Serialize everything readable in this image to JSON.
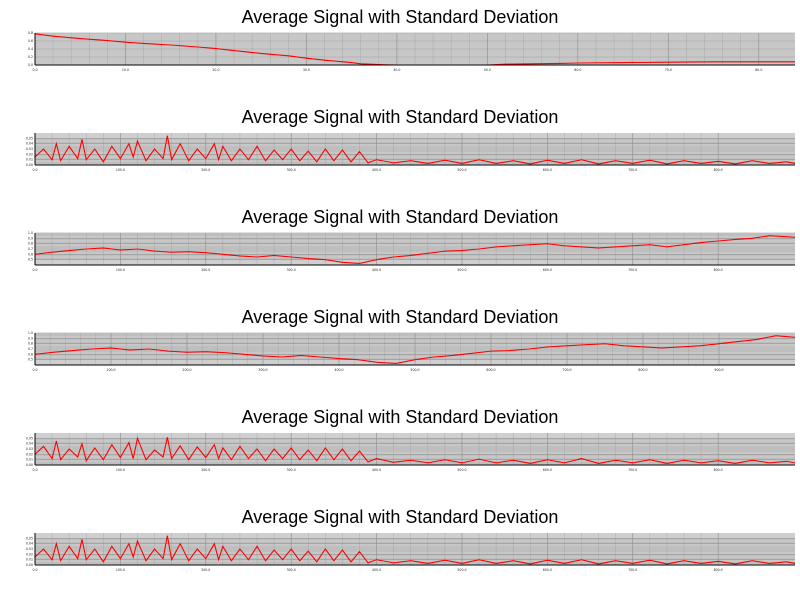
{
  "colors": {
    "plot_bg": "#cfcfcf",
    "grid": "#8c8c8c",
    "line": "#ff0000",
    "axis": "#000000"
  },
  "chart_data": [
    {
      "type": "line",
      "title": "Average Signal with Standard Deviation",
      "grid": true,
      "xlim": [
        0,
        84
      ],
      "ylim": [
        0.0,
        0.8
      ],
      "x_ticks": [
        0,
        10,
        20,
        30,
        40,
        50,
        60,
        70,
        80
      ],
      "x_tick_labels": [
        "0.0",
        "10.0",
        "20.0",
        "30.0",
        "40.0",
        "50.0",
        "60.0",
        "70.0",
        "80.0"
      ],
      "y_ticks": [
        0.0,
        0.2,
        0.4,
        0.6,
        0.8
      ],
      "y_tick_labels": [
        "0.0",
        "0.2",
        "0.4",
        "0.6",
        "0.8"
      ],
      "series": [
        {
          "x": [
            0,
            2,
            5,
            8,
            10,
            12,
            15,
            18,
            20,
            22,
            25,
            28,
            30,
            32,
            35,
            36,
            38,
            40,
            45,
            50,
            52,
            55,
            58,
            60,
            65,
            70,
            75,
            80,
            84
          ],
          "values": [
            0.78,
            0.72,
            0.66,
            0.61,
            0.57,
            0.54,
            0.5,
            0.45,
            0.41,
            0.36,
            0.29,
            0.23,
            0.17,
            0.12,
            0.06,
            0.03,
            0.01,
            0.0,
            0.0,
            0.0,
            0.02,
            0.03,
            0.04,
            0.05,
            0.06,
            0.07,
            0.08,
            0.08,
            0.08
          ]
        }
      ]
    },
    {
      "type": "line",
      "title": "Average Signal with Standard Deviation",
      "grid": true,
      "xlim": [
        0,
        890
      ],
      "ylim": [
        0.0,
        0.06
      ],
      "x_ticks": [
        0,
        100,
        200,
        300,
        400,
        500,
        600,
        700,
        800
      ],
      "x_tick_labels": [
        "0.0",
        "100.0",
        "200.0",
        "300.0",
        "400.0",
        "500.0",
        "600.0",
        "700.0",
        "800.0"
      ],
      "y_ticks": [
        0.0,
        0.01,
        0.02,
        0.03,
        0.04,
        0.05
      ],
      "y_tick_labels": [
        "0.00",
        "0.01",
        "0.02",
        "0.03",
        "0.04",
        "0.05"
      ],
      "series": [
        {
          "x": [
            0,
            10,
            20,
            25,
            30,
            40,
            50,
            55,
            60,
            70,
            80,
            90,
            100,
            110,
            115,
            120,
            130,
            140,
            150,
            155,
            160,
            170,
            180,
            190,
            200,
            210,
            215,
            220,
            230,
            240,
            250,
            260,
            270,
            280,
            290,
            300,
            310,
            320,
            330,
            340,
            350,
            360,
            370,
            380,
            390,
            400,
            420,
            440,
            460,
            480,
            500,
            520,
            540,
            560,
            580,
            600,
            620,
            640,
            660,
            680,
            700,
            720,
            740,
            760,
            780,
            800,
            820,
            840,
            860,
            880,
            890
          ],
          "values": [
            0.015,
            0.03,
            0.01,
            0.04,
            0.008,
            0.035,
            0.012,
            0.048,
            0.01,
            0.03,
            0.006,
            0.035,
            0.012,
            0.04,
            0.015,
            0.045,
            0.008,
            0.03,
            0.012,
            0.055,
            0.01,
            0.04,
            0.008,
            0.03,
            0.012,
            0.04,
            0.01,
            0.035,
            0.008,
            0.03,
            0.01,
            0.035,
            0.008,
            0.028,
            0.01,
            0.03,
            0.008,
            0.026,
            0.006,
            0.03,
            0.008,
            0.028,
            0.006,
            0.025,
            0.004,
            0.01,
            0.004,
            0.008,
            0.003,
            0.009,
            0.003,
            0.01,
            0.003,
            0.008,
            0.002,
            0.009,
            0.003,
            0.01,
            0.002,
            0.008,
            0.003,
            0.009,
            0.002,
            0.008,
            0.003,
            0.007,
            0.002,
            0.008,
            0.003,
            0.006,
            0.003
          ]
        }
      ]
    },
    {
      "type": "line",
      "title": "Average Signal with Standard Deviation",
      "grid": true,
      "xlim": [
        0,
        890
      ],
      "ylim": [
        0.4,
        1.0
      ],
      "x_ticks": [
        0,
        100,
        200,
        300,
        400,
        500,
        600,
        700,
        800
      ],
      "x_tick_labels": [
        "0.0",
        "100.0",
        "200.0",
        "300.0",
        "400.0",
        "500.0",
        "600.0",
        "700.0",
        "800.0"
      ],
      "y_ticks": [
        0.5,
        0.6,
        0.7,
        0.8,
        0.9,
        1.0
      ],
      "y_tick_labels": [
        "0.5",
        "0.6",
        "0.7",
        "0.8",
        "0.9",
        "1.0"
      ],
      "series": [
        {
          "x": [
            0,
            20,
            40,
            60,
            80,
            100,
            120,
            140,
            160,
            180,
            200,
            220,
            240,
            260,
            280,
            300,
            320,
            340,
            360,
            380,
            400,
            420,
            440,
            460,
            480,
            500,
            520,
            540,
            560,
            580,
            600,
            620,
            640,
            660,
            680,
            700,
            720,
            740,
            760,
            780,
            800,
            820,
            840,
            860,
            880,
            890
          ],
          "values": [
            0.6,
            0.64,
            0.67,
            0.7,
            0.72,
            0.68,
            0.7,
            0.66,
            0.64,
            0.65,
            0.63,
            0.6,
            0.57,
            0.55,
            0.58,
            0.55,
            0.52,
            0.5,
            0.45,
            0.43,
            0.5,
            0.55,
            0.58,
            0.62,
            0.66,
            0.67,
            0.7,
            0.74,
            0.76,
            0.78,
            0.8,
            0.76,
            0.74,
            0.72,
            0.74,
            0.76,
            0.78,
            0.74,
            0.78,
            0.82,
            0.85,
            0.88,
            0.9,
            0.95,
            0.93,
            0.92
          ]
        }
      ]
    },
    {
      "type": "line",
      "title": "Average Signal with Standard Deviation",
      "grid": true,
      "xlim": [
        0,
        1000
      ],
      "ylim": [
        0.4,
        1.0
      ],
      "x_ticks": [
        0,
        100,
        200,
        300,
        400,
        500,
        600,
        700,
        800,
        900
      ],
      "x_tick_labels": [
        "0.0",
        "100.0",
        "200.0",
        "300.0",
        "400.0",
        "500.0",
        "600.0",
        "700.0",
        "800.0",
        "900.0"
      ],
      "y_ticks": [
        0.5,
        0.6,
        0.7,
        0.8,
        0.9,
        1.0
      ],
      "y_tick_labels": [
        "0.5",
        "0.6",
        "0.7",
        "0.8",
        "0.9",
        "1.0"
      ],
      "series": [
        {
          "x": [
            0,
            25,
            50,
            75,
            100,
            125,
            150,
            175,
            200,
            225,
            250,
            275,
            300,
            325,
            350,
            375,
            400,
            425,
            450,
            475,
            500,
            525,
            550,
            575,
            600,
            625,
            650,
            675,
            700,
            725,
            750,
            775,
            800,
            825,
            850,
            875,
            900,
            925,
            950,
            975,
            1000
          ],
          "values": [
            0.6,
            0.64,
            0.67,
            0.7,
            0.72,
            0.68,
            0.7,
            0.66,
            0.64,
            0.65,
            0.63,
            0.6,
            0.57,
            0.55,
            0.58,
            0.55,
            0.52,
            0.5,
            0.45,
            0.43,
            0.5,
            0.55,
            0.58,
            0.62,
            0.66,
            0.67,
            0.7,
            0.74,
            0.76,
            0.78,
            0.8,
            0.76,
            0.74,
            0.72,
            0.74,
            0.76,
            0.8,
            0.84,
            0.88,
            0.95,
            0.92
          ]
        }
      ]
    },
    {
      "type": "line",
      "title": "Average Signal with Standard Deviation",
      "grid": true,
      "xlim": [
        0,
        890
      ],
      "ylim": [
        0.0,
        0.06
      ],
      "x_ticks": [
        0,
        100,
        200,
        300,
        400,
        500,
        600,
        700,
        800
      ],
      "x_tick_labels": [
        "0.0",
        "100.0",
        "200.0",
        "300.0",
        "400.0",
        "500.0",
        "600.0",
        "700.0",
        "800.0"
      ],
      "y_ticks": [
        0.0,
        0.01,
        0.02,
        0.03,
        0.04,
        0.05
      ],
      "y_tick_labels": [
        "0.00",
        "0.01",
        "0.02",
        "0.03",
        "0.04",
        "0.05"
      ],
      "series": [
        {
          "x": [
            0,
            10,
            20,
            25,
            30,
            40,
            50,
            55,
            60,
            70,
            80,
            90,
            100,
            110,
            115,
            120,
            130,
            140,
            150,
            155,
            160,
            170,
            180,
            190,
            200,
            210,
            215,
            220,
            230,
            240,
            250,
            260,
            270,
            280,
            290,
            300,
            310,
            320,
            330,
            340,
            350,
            360,
            370,
            380,
            390,
            400,
            420,
            440,
            460,
            480,
            500,
            520,
            540,
            560,
            580,
            600,
            620,
            640,
            660,
            680,
            700,
            720,
            740,
            760,
            780,
            800,
            820,
            840,
            860,
            880,
            890
          ],
          "values": [
            0.02,
            0.035,
            0.012,
            0.045,
            0.01,
            0.03,
            0.015,
            0.04,
            0.008,
            0.032,
            0.01,
            0.038,
            0.014,
            0.042,
            0.012,
            0.05,
            0.01,
            0.028,
            0.015,
            0.052,
            0.012,
            0.036,
            0.01,
            0.034,
            0.014,
            0.038,
            0.012,
            0.032,
            0.01,
            0.035,
            0.012,
            0.03,
            0.008,
            0.03,
            0.012,
            0.032,
            0.01,
            0.028,
            0.008,
            0.032,
            0.01,
            0.03,
            0.008,
            0.026,
            0.006,
            0.012,
            0.005,
            0.009,
            0.004,
            0.01,
            0.004,
            0.011,
            0.004,
            0.009,
            0.003,
            0.01,
            0.004,
            0.012,
            0.003,
            0.009,
            0.004,
            0.01,
            0.003,
            0.009,
            0.004,
            0.008,
            0.003,
            0.009,
            0.004,
            0.007,
            0.004
          ]
        }
      ]
    },
    {
      "type": "line",
      "title": "Average Signal with Standard Deviation",
      "grid": true,
      "xlim": [
        0,
        890
      ],
      "ylim": [
        0.0,
        0.06
      ],
      "x_ticks": [
        0,
        100,
        200,
        300,
        400,
        500,
        600,
        700,
        800
      ],
      "x_tick_labels": [
        "0.0",
        "100.0",
        "200.0",
        "300.0",
        "400.0",
        "500.0",
        "600.0",
        "700.0",
        "800.0"
      ],
      "y_ticks": [
        0.0,
        0.01,
        0.02,
        0.03,
        0.04,
        0.05
      ],
      "y_tick_labels": [
        "0.00",
        "0.01",
        "0.02",
        "0.03",
        "0.04",
        "0.05"
      ],
      "series": [
        {
          "x": [
            0,
            10,
            20,
            25,
            30,
            40,
            50,
            55,
            60,
            70,
            80,
            90,
            100,
            110,
            115,
            120,
            130,
            140,
            150,
            155,
            160,
            170,
            180,
            190,
            200,
            210,
            215,
            220,
            230,
            240,
            250,
            260,
            270,
            280,
            290,
            300,
            310,
            320,
            330,
            340,
            350,
            360,
            370,
            380,
            390,
            400,
            420,
            440,
            460,
            480,
            500,
            520,
            540,
            560,
            580,
            600,
            620,
            640,
            660,
            680,
            700,
            720,
            740,
            760,
            780,
            800,
            820,
            840,
            860,
            880,
            890
          ],
          "values": [
            0.015,
            0.03,
            0.01,
            0.04,
            0.008,
            0.035,
            0.012,
            0.048,
            0.01,
            0.03,
            0.006,
            0.035,
            0.012,
            0.04,
            0.015,
            0.045,
            0.008,
            0.03,
            0.012,
            0.055,
            0.01,
            0.04,
            0.008,
            0.03,
            0.012,
            0.04,
            0.01,
            0.035,
            0.008,
            0.03,
            0.01,
            0.035,
            0.008,
            0.028,
            0.01,
            0.03,
            0.008,
            0.026,
            0.006,
            0.03,
            0.008,
            0.028,
            0.006,
            0.025,
            0.004,
            0.01,
            0.004,
            0.008,
            0.003,
            0.009,
            0.003,
            0.01,
            0.003,
            0.008,
            0.002,
            0.009,
            0.003,
            0.01,
            0.002,
            0.008,
            0.003,
            0.009,
            0.002,
            0.008,
            0.003,
            0.007,
            0.002,
            0.008,
            0.003,
            0.006,
            0.003
          ]
        }
      ]
    }
  ]
}
